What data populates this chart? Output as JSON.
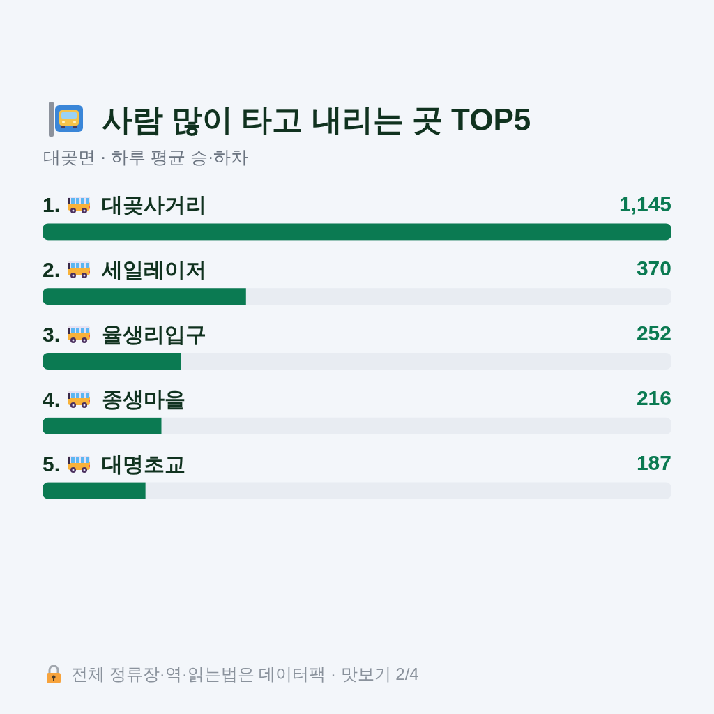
{
  "chart_data": {
    "type": "bar",
    "orientation": "horizontal",
    "title": "사람 많이 타고 내리는 곳 TOP5",
    "subtitle": "대곶면 · 하루 평균 승·하차",
    "categories": [
      "1. 대곶사거리",
      "2. 세일레이저",
      "3. 율생리입구",
      "4. 종생마을",
      "5. 대명초교"
    ],
    "values": [
      1145,
      370,
      252,
      216,
      187
    ],
    "value_labels": [
      "1,145",
      "370",
      "252",
      "216",
      "187"
    ],
    "color": "#0b7a52",
    "xlim": [
      0,
      1145
    ],
    "tick_labels": "y",
    "annotations": [
      "전체 정류장·역·읽는법은 데이터팩 · 맛보기 2/4"
    ]
  }
}
